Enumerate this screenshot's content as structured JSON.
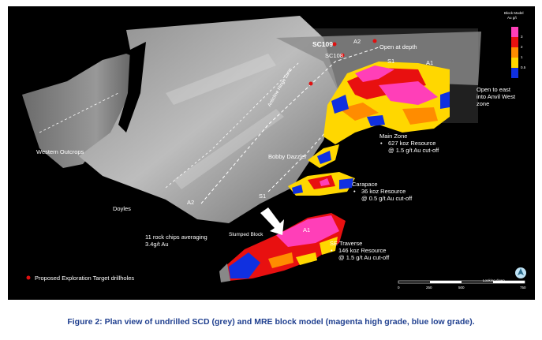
{
  "labels": {
    "sc109": "SC109",
    "sc108": "SC108",
    "a2_top": "A2",
    "open_at_depth": "Open at depth",
    "s1_top": "S1",
    "a1_top": "A1",
    "anticline": "Anticline Hinge Zone",
    "western_outcrops": "Western Outcrops",
    "bobby_dazzler": "Bobby Dazzler",
    "s1_mid": "S1",
    "doyles": "Doyles",
    "a2_mid": "A2",
    "a1_se": "A1",
    "slumped_block": "Slumped Block",
    "open_to_east": "Open to east\ninto Anvil West\nzone",
    "rock_chips": "11 rock chips averaging\n3.4g/t Au"
  },
  "zones": {
    "main": {
      "title": "Main Zone",
      "line1": "627 koz Resource",
      "line2": "@ 1.5 g/t Au cut-off"
    },
    "carapace": {
      "title": "Carapace",
      "line1": "36 koz Resource",
      "line2": "@ 0.5 g/t Au cut-off"
    },
    "se": {
      "title": "SE Traverse",
      "line1": "146 koz Resource",
      "line2": "@ 1.5 g/t Au cut-off"
    }
  },
  "target_legend": "Proposed Exploration Target drillholes",
  "block_legend": {
    "title": "Block Model",
    "unit": "Au g/t",
    "ticks": [
      "3",
      "2",
      "1",
      "0.5"
    ],
    "colors": [
      "#ff3fb8",
      "#e81010",
      "#ff8c00",
      "#ffd700",
      "#1030e0"
    ]
  },
  "scale": {
    "ticks": [
      "0",
      "250",
      "500",
      "750"
    ]
  },
  "view_label": "Looking down",
  "caption": "Figure 2: Plan view of undrilled SCD (grey) and MRE block model (magenta high grade, blue low grade).",
  "colors": {
    "high_grade": "#ff3fb8",
    "grade_red": "#e81010",
    "grade_orange": "#ff8c00",
    "grade_yellow": "#ffd700",
    "low_grade": "#1030e0",
    "drillhole": "#e01010"
  }
}
